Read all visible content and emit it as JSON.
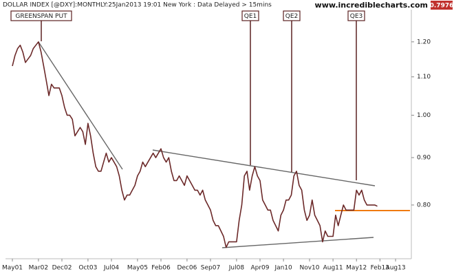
{
  "chart_data": {
    "type": "line",
    "title": "DOLLAR INDEX [@DXY]:MONTHLY:25Jan2013 19:01 New York : Data Delayed > 15mins",
    "source": "www.incrediblecharts.com",
    "annotations": [
      "GREENSPAN PUT",
      "QE1",
      "QE2",
      "QE3"
    ],
    "log_scale": true,
    "grid": false,
    "xlim": [
      "2001-05",
      "2014-01"
    ],
    "xticks": [
      {
        "value": "2001-05",
        "label": "May01"
      },
      {
        "value": "2002-03",
        "label": "Mar02"
      },
      {
        "value": "2002-12",
        "label": "Dec02"
      },
      {
        "value": "2003-10",
        "label": "Oct03"
      },
      {
        "value": "2004-07",
        "label": "Jul04"
      },
      {
        "value": "2005-05",
        "label": "May05"
      },
      {
        "value": "2006-02",
        "label": "Feb06"
      },
      {
        "value": "2006-12",
        "label": "Dec06"
      },
      {
        "value": "2007-09",
        "label": "Sep07"
      },
      {
        "value": "2008-07",
        "label": "Jul08"
      },
      {
        "value": "2009-04",
        "label": "Apr09"
      },
      {
        "value": "2010-01",
        "label": "Jan10"
      },
      {
        "value": "2010-11",
        "label": "Nov10"
      },
      {
        "value": "2011-08",
        "label": "Aug11"
      },
      {
        "value": "2012-05",
        "label": "May12"
      },
      {
        "value": "2013-02",
        "label": "Feb13"
      },
      {
        "value": "2013-08",
        "label": "Aug13"
      }
    ],
    "ylim": [
      0.7,
      1.3
    ],
    "yticks": [
      {
        "value": 0.8,
        "label": "0.80"
      },
      {
        "value": 0.9,
        "label": "0.90"
      },
      {
        "value": 1.0,
        "label": "1.00"
      },
      {
        "value": 1.1,
        "label": "1.10"
      },
      {
        "value": 1.2,
        "label": "1.20"
      }
    ],
    "x": [
      "2001-05",
      "2001-06",
      "2001-07",
      "2001-08",
      "2001-09",
      "2001-10",
      "2001-11",
      "2001-12",
      "2002-01",
      "2002-02",
      "2002-03",
      "2002-04",
      "2002-05",
      "2002-06",
      "2002-07",
      "2002-08",
      "2002-09",
      "2002-10",
      "2002-11",
      "2002-12",
      "2003-01",
      "2003-02",
      "2003-03",
      "2003-04",
      "2003-05",
      "2003-06",
      "2003-07",
      "2003-08",
      "2003-09",
      "2003-10",
      "2003-11",
      "2003-12",
      "2004-01",
      "2004-02",
      "2004-03",
      "2004-04",
      "2004-05",
      "2004-06",
      "2004-07",
      "2004-08",
      "2004-09",
      "2004-10",
      "2004-11",
      "2004-12",
      "2005-01",
      "2005-02",
      "2005-03",
      "2005-04",
      "2005-05",
      "2005-06",
      "2005-07",
      "2005-08",
      "2005-09",
      "2005-10",
      "2005-11",
      "2005-12",
      "2006-01",
      "2006-02",
      "2006-03",
      "2006-04",
      "2006-05",
      "2006-06",
      "2006-07",
      "2006-08",
      "2006-09",
      "2006-10",
      "2006-11",
      "2006-12",
      "2007-01",
      "2007-02",
      "2007-03",
      "2007-04",
      "2007-05",
      "2007-06",
      "2007-07",
      "2007-08",
      "2007-09",
      "2007-10",
      "2007-11",
      "2007-12",
      "2008-01",
      "2008-02",
      "2008-03",
      "2008-04",
      "2008-05",
      "2008-06",
      "2008-07",
      "2008-08",
      "2008-09",
      "2008-10",
      "2008-11",
      "2008-12",
      "2009-01",
      "2009-02",
      "2009-03",
      "2009-04",
      "2009-05",
      "2009-06",
      "2009-07",
      "2009-08",
      "2009-09",
      "2009-10",
      "2009-11",
      "2009-12",
      "2010-01",
      "2010-02",
      "2010-03",
      "2010-04",
      "2010-05",
      "2010-06",
      "2010-07",
      "2010-08",
      "2010-09",
      "2010-10",
      "2010-11",
      "2010-12",
      "2011-01",
      "2011-02",
      "2011-03",
      "2011-04",
      "2011-05",
      "2011-06",
      "2011-07",
      "2011-08",
      "2011-09",
      "2011-10",
      "2011-11",
      "2011-12",
      "2012-01",
      "2012-02",
      "2012-03",
      "2012-04",
      "2012-05",
      "2012-06",
      "2012-07",
      "2012-08",
      "2012-09",
      "2012-10",
      "2012-11",
      "2012-12",
      "2013-01"
    ],
    "series": [
      {
        "color": "#6b2828",
        "values": [
          1.13,
          1.16,
          1.18,
          1.19,
          1.17,
          1.14,
          1.15,
          1.16,
          1.18,
          1.19,
          1.2,
          1.17,
          1.13,
          1.09,
          1.05,
          1.08,
          1.07,
          1.07,
          1.07,
          1.05,
          1.02,
          1.0,
          1.0,
          0.99,
          0.95,
          0.96,
          0.97,
          0.96,
          0.93,
          0.98,
          0.95,
          0.91,
          0.88,
          0.87,
          0.87,
          0.89,
          0.91,
          0.89,
          0.9,
          0.89,
          0.88,
          0.86,
          0.83,
          0.81,
          0.82,
          0.82,
          0.83,
          0.84,
          0.86,
          0.87,
          0.89,
          0.88,
          0.89,
          0.9,
          0.91,
          0.9,
          0.91,
          0.92,
          0.9,
          0.89,
          0.9,
          0.87,
          0.85,
          0.85,
          0.86,
          0.85,
          0.84,
          0.86,
          0.85,
          0.84,
          0.83,
          0.83,
          0.82,
          0.83,
          0.81,
          0.8,
          0.79,
          0.77,
          0.76,
          0.76,
          0.75,
          0.74,
          0.72,
          0.73,
          0.73,
          0.73,
          0.73,
          0.77,
          0.8,
          0.86,
          0.87,
          0.83,
          0.86,
          0.88,
          0.86,
          0.85,
          0.81,
          0.8,
          0.79,
          0.79,
          0.77,
          0.76,
          0.75,
          0.78,
          0.79,
          0.81,
          0.81,
          0.82,
          0.86,
          0.87,
          0.84,
          0.83,
          0.79,
          0.77,
          0.78,
          0.81,
          0.78,
          0.77,
          0.76,
          0.73,
          0.75,
          0.74,
          0.74,
          0.74,
          0.78,
          0.76,
          0.78,
          0.8,
          0.79,
          0.79,
          0.79,
          0.79,
          0.83,
          0.82,
          0.83,
          0.81,
          0.8,
          0.8,
          0.8,
          0.8,
          0.7976
        ]
      }
    ]
  }
}
